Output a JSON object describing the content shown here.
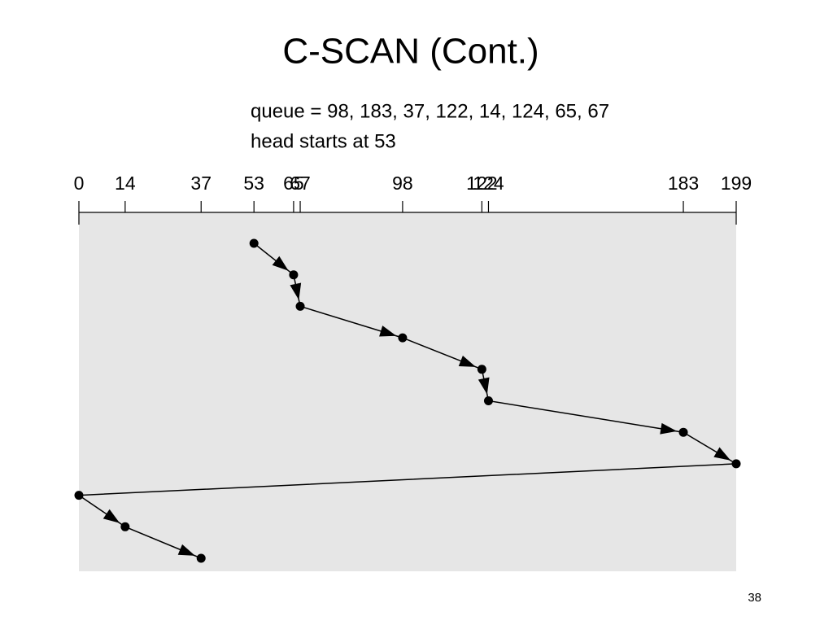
{
  "title": "C-SCAN (Cont.)",
  "text_lines": [
    "queue = 98, 183, 37, 122, 14, 124, 65, 67",
    "head starts at 53"
  ],
  "page_number": "38",
  "chart_data": {
    "type": "head-path",
    "xlim": [
      0,
      199
    ],
    "xticks": [
      0,
      14,
      37,
      53,
      65,
      67,
      98,
      122,
      124,
      183,
      199
    ],
    "x": [
      53,
      65,
      67,
      98,
      122,
      124,
      183,
      199,
      0,
      14,
      37
    ],
    "color": "#000000",
    "background": "#e6e6e6"
  }
}
